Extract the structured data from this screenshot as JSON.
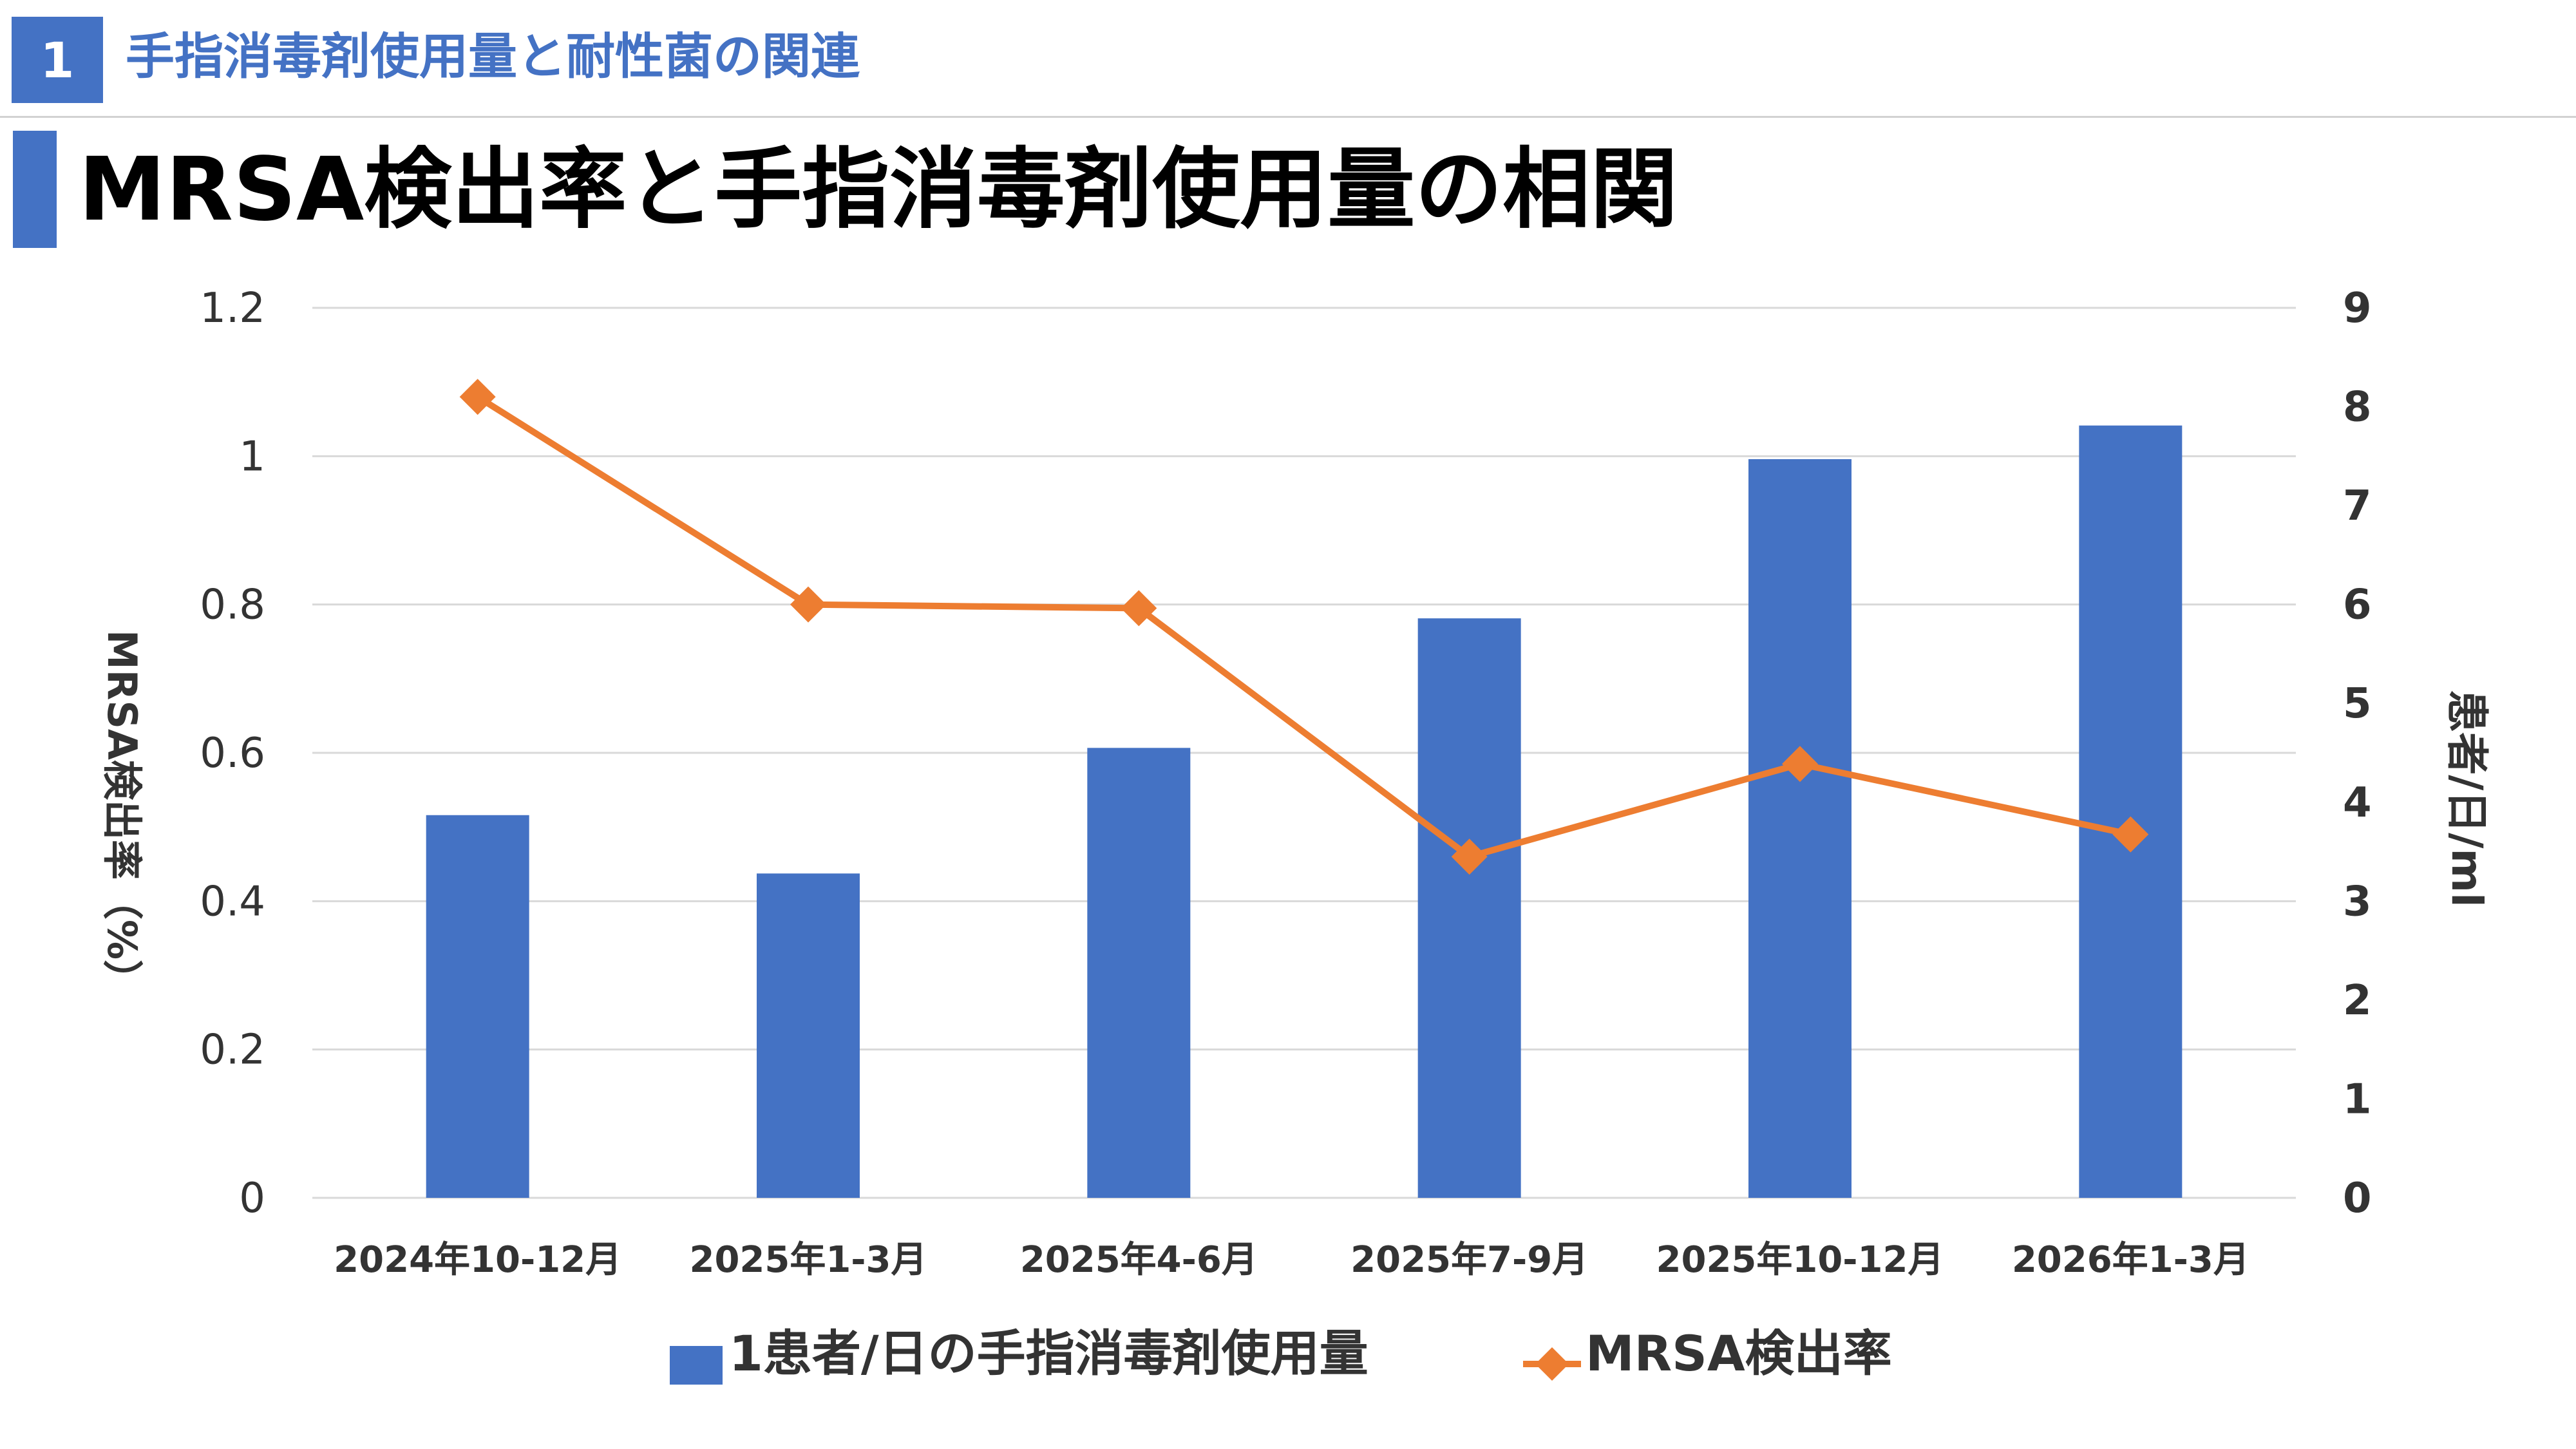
{
  "header": {
    "section_number": "1",
    "section_title": "手指消毒剤使用量と耐性菌の関連"
  },
  "slide": {
    "title": "MRSA検出率と手指消毒剤使用量の相関"
  },
  "colors": {
    "accent": "#4472C4",
    "bar": "#4472C4",
    "line": "#ED7D31",
    "grid": "#D9D9D9"
  },
  "chart_data": {
    "type": "bar",
    "categories": [
      "2024年10-12月",
      "2025年1-3月",
      "2025年4-6月",
      "2025年7-9月",
      "2025年10-12月",
      "2026年1-3月"
    ],
    "series": [
      {
        "name": "1患者/日の手指消毒剤使用量",
        "type": "bar",
        "axis": "right",
        "values": [
          3.87,
          3.28,
          4.55,
          5.86,
          7.47,
          7.81
        ]
      },
      {
        "name": "MRSA検出率",
        "type": "line",
        "marker": "diamond",
        "axis": "left",
        "values": [
          1.08,
          0.8,
          0.795,
          0.46,
          0.585,
          0.49
        ]
      }
    ],
    "ylabel": "MRSA検出率（%）",
    "ylabel_right": "患者/日/ml",
    "ylim": [
      0,
      1.2
    ],
    "ylim_right": [
      0,
      9
    ],
    "yticks": [
      "0",
      "0.2",
      "0.4",
      "0.6",
      "0.8",
      "1",
      "1.2"
    ],
    "yticks_right": [
      "0",
      "1",
      "2",
      "3",
      "4",
      "5",
      "6",
      "7",
      "8",
      "9"
    ],
    "grid": true,
    "legend": "bottom"
  }
}
